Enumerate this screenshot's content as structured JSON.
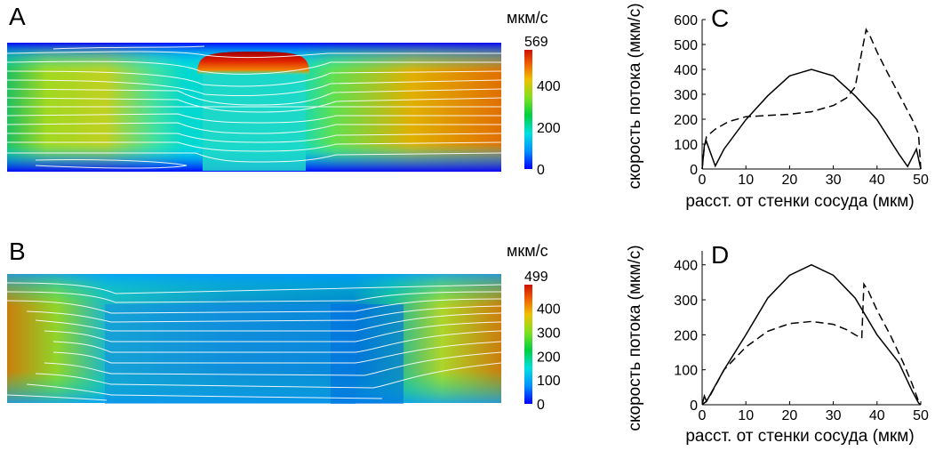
{
  "panels": {
    "A": {
      "letter": "A",
      "colorbar": {
        "unit": "мкм/с",
        "max_label": "569",
        "tick_labels": [
          "400",
          "200",
          "0"
        ],
        "max": 569,
        "ticks": [
          400,
          200,
          0
        ]
      }
    },
    "B": {
      "letter": "B",
      "colorbar": {
        "unit": "мкм/с",
        "max_label": "499",
        "tick_labels": [
          "400",
          "300",
          "200",
          "100",
          "0"
        ],
        "max": 499,
        "ticks": [
          400,
          300,
          200,
          100,
          0
        ]
      }
    },
    "C": {
      "letter": "C"
    },
    "D": {
      "letter": "D"
    }
  },
  "colors": {
    "colormap": [
      "#0000ff",
      "#00a0ff",
      "#00e0c0",
      "#20d020",
      "#b0e020",
      "#f0c000",
      "#e07000",
      "#d02000"
    ],
    "streamline": "#ffffff",
    "curve": "#000000"
  },
  "chart_data": [
    {
      "type": "line",
      "panel": "C",
      "ylabel": "скорость потока (мкм/с)",
      "xlabel": "расст. от стенки сосуда (мкм)",
      "xlim": [
        0,
        50
      ],
      "ylim": [
        0,
        600
      ],
      "xticks": [
        0,
        10,
        20,
        30,
        40,
        50
      ],
      "yticks": [
        0,
        100,
        200,
        300,
        400,
        500,
        600
      ],
      "series": [
        {
          "style": "solid",
          "x": [
            0,
            0.5,
            1,
            3,
            5,
            10,
            15,
            20,
            25,
            30,
            35,
            40,
            45,
            47,
            49,
            50
          ],
          "y": [
            0,
            95,
            110,
            12,
            80,
            198,
            294,
            374,
            400,
            374,
            294,
            198,
            60,
            10,
            80,
            0
          ]
        },
        {
          "style": "dashed",
          "x": [
            0,
            0.5,
            1,
            3,
            6,
            10,
            15,
            20,
            25,
            30,
            33,
            35,
            36.5,
            37.5,
            38.5,
            40,
            42,
            45,
            48,
            49.5,
            50
          ],
          "y": [
            0,
            90,
            130,
            160,
            190,
            210,
            215,
            220,
            230,
            255,
            285,
            330,
            470,
            560,
            530,
            470,
            400,
            300,
            200,
            140,
            0
          ]
        }
      ]
    },
    {
      "type": "line",
      "panel": "D",
      "ylabel": "скорость потока (мкм/с)",
      "xlabel": "расст. от стенки сосуда (мкм)",
      "xlim": [
        0,
        50
      ],
      "ylim": [
        0,
        440
      ],
      "xticks": [
        0,
        10,
        20,
        30,
        40,
        50
      ],
      "yticks": [
        0,
        100,
        200,
        300,
        400
      ],
      "series": [
        {
          "style": "solid",
          "x": [
            0,
            0.5,
            1,
            5,
            10,
            15,
            20,
            25,
            30,
            35,
            40,
            45,
            48,
            49.5,
            50
          ],
          "y": [
            0,
            25,
            10,
            100,
            200,
            305,
            370,
            400,
            370,
            305,
            200,
            120,
            40,
            5,
            0
          ]
        },
        {
          "style": "dashed",
          "x": [
            0,
            1,
            2,
            5,
            10,
            15,
            20,
            25,
            30,
            33,
            35,
            36.5,
            37,
            38,
            40,
            43,
            46,
            48,
            49.5,
            50
          ],
          "y": [
            0,
            10,
            30,
            100,
            165,
            210,
            232,
            238,
            230,
            215,
            200,
            190,
            345,
            325,
            270,
            200,
            120,
            60,
            10,
            0
          ]
        }
      ]
    }
  ]
}
